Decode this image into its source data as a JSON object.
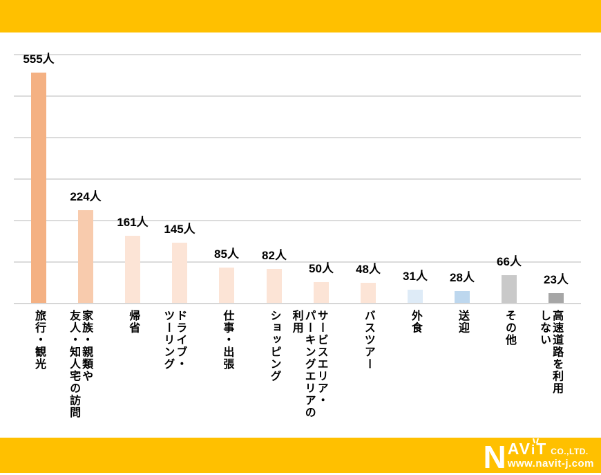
{
  "page": {
    "background": "#FFFFFF",
    "band_color": "#FFC000"
  },
  "logo": {
    "big_letter": "N",
    "name_part_av": "AV",
    "name_part_i": "i",
    "name_part_t": "T",
    "company_suffix": "CO.,LTD.",
    "url": "www.navit-j.com",
    "text_color": "#FFFFFF"
  },
  "chart_data": {
    "type": "bar",
    "title": "",
    "xlabel": "",
    "ylabel": "",
    "unit_suffix": "人",
    "ylim": [
      0,
      600
    ],
    "grid_step": 100,
    "grid": true,
    "legend": "none",
    "gridline_color": "#DBDBDB",
    "axis_line_color": "#D6D6D6",
    "value_label_color": "#000000",
    "category_label_color": "#000000",
    "categories": [
      "旅行・観光",
      "家族・親類や\n友人・知人宅の訪問",
      "帰省",
      "ドライブ・\nツーリング",
      "仕事・出張",
      "ショッピング",
      "サービスエリア・\nパーキングエリアの\n利用",
      "バスツアー",
      "外食",
      "送迎",
      "その他",
      "高速道路を利用\nしない"
    ],
    "values": [
      555,
      224,
      161,
      145,
      85,
      82,
      50,
      48,
      31,
      28,
      66,
      23
    ],
    "value_labels": [
      "555人",
      "224人",
      "161人",
      "145人",
      "85人",
      "82人",
      "50人",
      "48人",
      "31人",
      "28人",
      "66人",
      "23人"
    ],
    "bar_colors": [
      "#F4B183",
      "#F8CBAD",
      "#FCE4D6",
      "#FCE4D6",
      "#FCE4D6",
      "#FCE4D6",
      "#FCE4D6",
      "#FCE4D6",
      "#DEEBF7",
      "#BDD7EE",
      "#C9C9C9",
      "#A6A6A6"
    ]
  }
}
